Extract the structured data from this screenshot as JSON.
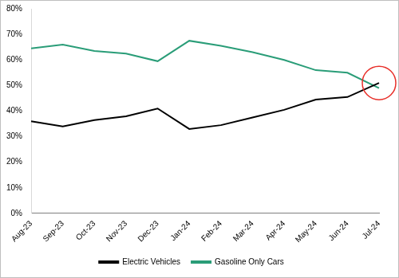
{
  "chart_data": {
    "type": "line",
    "categories": [
      "Aug-23",
      "Sep-23",
      "Oct-23",
      "Nov-23",
      "Dec-23",
      "Jan-24",
      "Feb-24",
      "Mar-24",
      "Apr-24",
      "May-24",
      "Jun-24",
      "Jul-24"
    ],
    "series": [
      {
        "name": "Electric Vehicles",
        "color": "#000000",
        "values": [
          36,
          34,
          36.5,
          38,
          41,
          33,
          34.5,
          37.5,
          40.5,
          44.5,
          45.5,
          51
        ]
      },
      {
        "name": "Gasoline Only Cars",
        "color": "#2a9d78",
        "values": [
          64.5,
          66,
          63.5,
          62.5,
          59.5,
          67.5,
          65.5,
          63,
          60,
          56,
          55,
          49
        ]
      }
    ],
    "ylim": [
      0,
      80
    ],
    "yticks": [
      {
        "value": 0,
        "label": "0%"
      },
      {
        "value": 10,
        "label": "10%"
      },
      {
        "value": 20,
        "label": "20%"
      },
      {
        "value": 30,
        "label": "30%"
      },
      {
        "value": 40,
        "label": "40%"
      },
      {
        "value": 50,
        "label": "50%"
      },
      {
        "value": 60,
        "label": "60%"
      },
      {
        "value": 70,
        "label": "70%"
      },
      {
        "value": 80,
        "label": "80%"
      }
    ],
    "grid": false,
    "legend": "bottom"
  }
}
